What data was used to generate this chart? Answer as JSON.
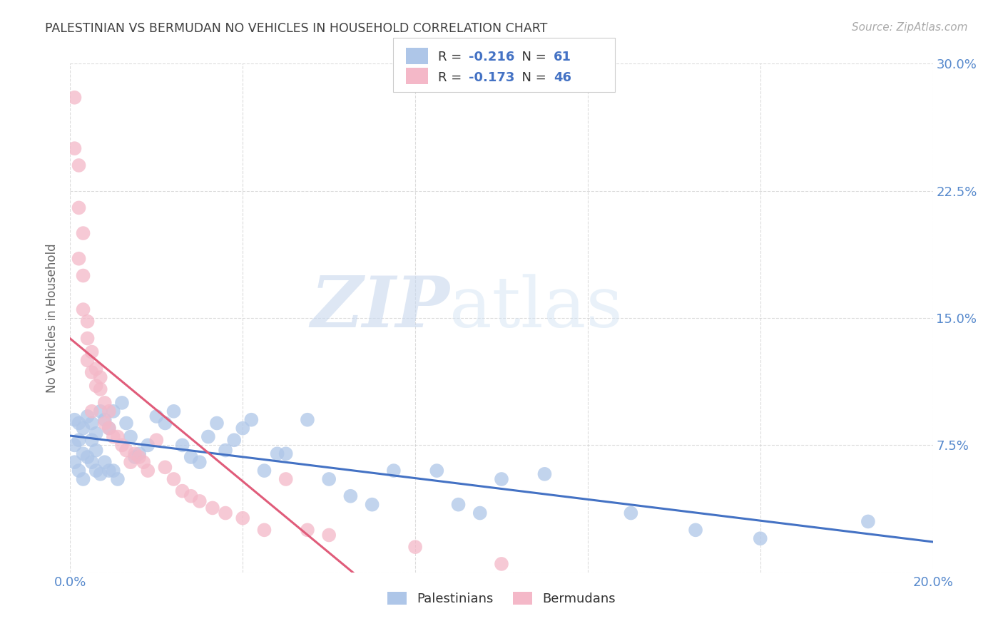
{
  "title": "PALESTINIAN VS BERMUDAN NO VEHICLES IN HOUSEHOLD CORRELATION CHART",
  "source": "Source: ZipAtlas.com",
  "ylabel": "No Vehicles in Household",
  "xlim": [
    0.0,
    0.2
  ],
  "ylim": [
    0.0,
    0.3
  ],
  "xticks": [
    0.0,
    0.04,
    0.08,
    0.12,
    0.16,
    0.2
  ],
  "xticklabels": [
    "0.0%",
    "",
    "",
    "",
    "",
    "20.0%"
  ],
  "yticks": [
    0.0,
    0.075,
    0.15,
    0.225,
    0.3
  ],
  "yticklabels_right": [
    "",
    "7.5%",
    "15.0%",
    "22.5%",
    "30.0%"
  ],
  "legend_r_blue": "-0.216",
  "legend_n_blue": "61",
  "legend_r_pink": "-0.173",
  "legend_n_pink": "46",
  "blue_scatter_color": "#aec6e8",
  "pink_scatter_color": "#f4b8c8",
  "blue_line_color": "#4472c4",
  "pink_line_color": "#e05c7a",
  "title_color": "#404040",
  "axis_label_color": "#666666",
  "tick_color": "#5588cc",
  "grid_color": "#cccccc",
  "watermark_zip": "ZIP",
  "watermark_atlas": "atlas",
  "palestinians_x": [
    0.001,
    0.001,
    0.001,
    0.002,
    0.002,
    0.002,
    0.003,
    0.003,
    0.003,
    0.004,
    0.004,
    0.005,
    0.005,
    0.005,
    0.006,
    0.006,
    0.006,
    0.007,
    0.007,
    0.008,
    0.008,
    0.009,
    0.009,
    0.01,
    0.01,
    0.011,
    0.012,
    0.013,
    0.014,
    0.015,
    0.016,
    0.018,
    0.02,
    0.022,
    0.024,
    0.026,
    0.028,
    0.03,
    0.032,
    0.034,
    0.036,
    0.038,
    0.04,
    0.042,
    0.045,
    0.048,
    0.05,
    0.055,
    0.06,
    0.065,
    0.07,
    0.075,
    0.085,
    0.09,
    0.095,
    0.1,
    0.11,
    0.13,
    0.145,
    0.16,
    0.185
  ],
  "palestinians_y": [
    0.09,
    0.075,
    0.065,
    0.088,
    0.078,
    0.06,
    0.085,
    0.07,
    0.055,
    0.092,
    0.068,
    0.088,
    0.078,
    0.065,
    0.082,
    0.072,
    0.06,
    0.095,
    0.058,
    0.09,
    0.065,
    0.085,
    0.06,
    0.095,
    0.06,
    0.055,
    0.1,
    0.088,
    0.08,
    0.068,
    0.07,
    0.075,
    0.092,
    0.088,
    0.095,
    0.075,
    0.068,
    0.065,
    0.08,
    0.088,
    0.072,
    0.078,
    0.085,
    0.09,
    0.06,
    0.07,
    0.07,
    0.09,
    0.055,
    0.045,
    0.04,
    0.06,
    0.06,
    0.04,
    0.035,
    0.055,
    0.058,
    0.035,
    0.025,
    0.02,
    0.03
  ],
  "bermudans_x": [
    0.001,
    0.001,
    0.002,
    0.002,
    0.002,
    0.003,
    0.003,
    0.003,
    0.004,
    0.004,
    0.004,
    0.005,
    0.005,
    0.005,
    0.006,
    0.006,
    0.007,
    0.007,
    0.008,
    0.008,
    0.009,
    0.009,
    0.01,
    0.011,
    0.012,
    0.013,
    0.014,
    0.015,
    0.016,
    0.017,
    0.018,
    0.02,
    0.022,
    0.024,
    0.026,
    0.028,
    0.03,
    0.033,
    0.036,
    0.04,
    0.045,
    0.05,
    0.055,
    0.06,
    0.08,
    0.1
  ],
  "bermudans_y": [
    0.28,
    0.25,
    0.24,
    0.215,
    0.185,
    0.2,
    0.175,
    0.155,
    0.148,
    0.138,
    0.125,
    0.13,
    0.118,
    0.095,
    0.12,
    0.11,
    0.115,
    0.108,
    0.1,
    0.088,
    0.095,
    0.085,
    0.08,
    0.08,
    0.075,
    0.072,
    0.065,
    0.07,
    0.068,
    0.065,
    0.06,
    0.078,
    0.062,
    0.055,
    0.048,
    0.045,
    0.042,
    0.038,
    0.035,
    0.032,
    0.025,
    0.055,
    0.025,
    0.022,
    0.015,
    0.005
  ]
}
